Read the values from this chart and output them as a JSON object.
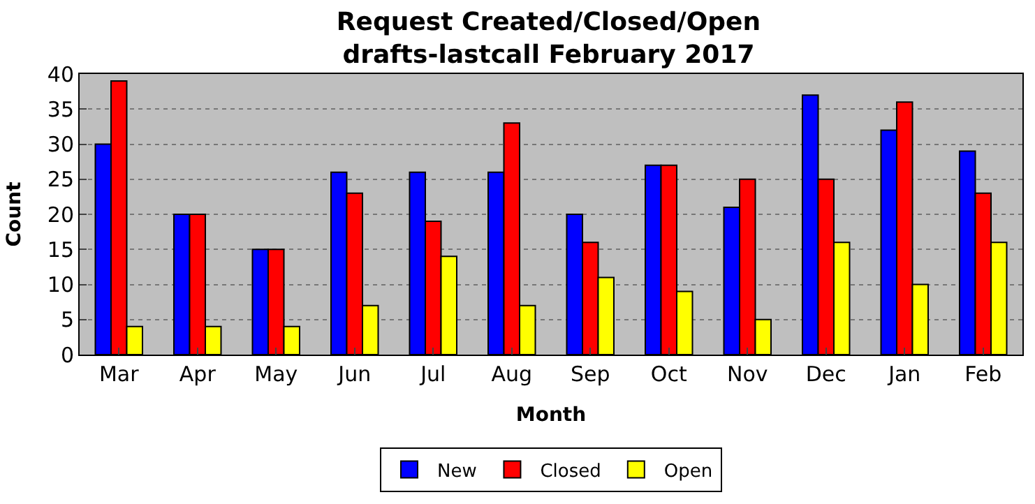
{
  "chart_data": {
    "type": "bar",
    "title": "Request Created/Closed/Open\ndrafts-lastcall February 2017",
    "xlabel": "Month",
    "ylabel": "Count",
    "categories": [
      "Mar",
      "Apr",
      "May",
      "Jun",
      "Jul",
      "Aug",
      "Sep",
      "Oct",
      "Nov",
      "Dec",
      "Jan",
      "Feb"
    ],
    "series": [
      {
        "name": "New",
        "color": "#0000ff",
        "values": [
          30,
          20,
          15,
          26,
          26,
          26,
          20,
          27,
          21,
          37,
          32,
          29
        ]
      },
      {
        "name": "Closed",
        "color": "#ff0000",
        "values": [
          39,
          20,
          15,
          23,
          19,
          33,
          16,
          27,
          25,
          25,
          36,
          23
        ]
      },
      {
        "name": "Open",
        "color": "#ffff00",
        "values": [
          4,
          4,
          4,
          7,
          14,
          7,
          11,
          9,
          5,
          16,
          10,
          16
        ]
      }
    ],
    "ylim": [
      0,
      40
    ],
    "yticks": [
      0,
      5,
      10,
      15,
      20,
      25,
      30,
      35,
      40
    ],
    "grid": "y",
    "legend": "bottom"
  }
}
